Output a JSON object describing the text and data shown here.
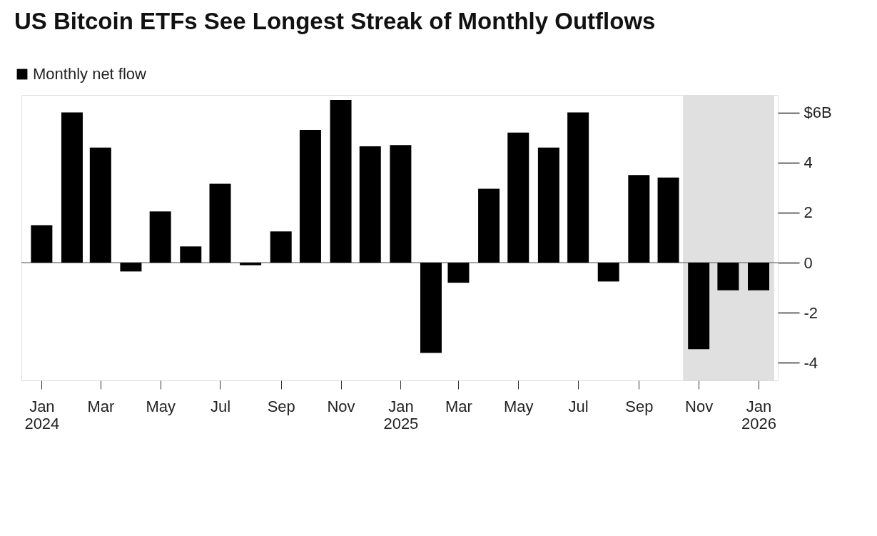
{
  "chart_data": {
    "type": "bar",
    "title": "US Bitcoin ETFs See Longest Streak of Monthly Outflows",
    "x": [
      "2024-01",
      "2024-02",
      "2024-03",
      "2024-04",
      "2024-05",
      "2024-06",
      "2024-07",
      "2024-08",
      "2024-09",
      "2024-10",
      "2024-11",
      "2024-12",
      "2025-01",
      "2025-02",
      "2025-03",
      "2025-04",
      "2025-05",
      "2025-06",
      "2025-07",
      "2025-08",
      "2025-09",
      "2025-10",
      "2025-11",
      "2025-12",
      "2026-01"
    ],
    "series": [
      {
        "name": "Monthly net flow",
        "color": "#000000",
        "values": [
          1.5,
          6.0,
          4.6,
          -0.35,
          2.05,
          0.65,
          3.15,
          -0.1,
          1.25,
          5.3,
          6.5,
          4.65,
          4.7,
          -3.6,
          -0.8,
          2.95,
          5.2,
          4.6,
          6.0,
          -0.75,
          3.5,
          3.4,
          -3.45,
          -1.1,
          -1.1
        ]
      }
    ],
    "xlim": [
      "2023-12-15",
      "2026-01-17"
    ],
    "xticks": [
      {
        "value": "2024-01",
        "label": "Jan 2024"
      },
      {
        "value": "2024-03",
        "label": "Mar"
      },
      {
        "value": "2024-05",
        "label": "May"
      },
      {
        "value": "2024-07",
        "label": "Jul"
      },
      {
        "value": "2024-09",
        "label": "Sep"
      },
      {
        "value": "2024-11",
        "label": "Nov"
      },
      {
        "value": "2025-01",
        "label": "Jan 2025"
      },
      {
        "value": "2025-03",
        "label": "Mar"
      },
      {
        "value": "2025-05",
        "label": "May"
      },
      {
        "value": "2025-07",
        "label": "Jul"
      },
      {
        "value": "2025-09",
        "label": "Sep"
      },
      {
        "value": "2025-11",
        "label": "Nov"
      },
      {
        "value": "2026-01",
        "label": "Jan 2026"
      }
    ],
    "ylim": [
      -4.7,
      6.7
    ],
    "yticks": [
      {
        "value": 6,
        "label": "$6B"
      },
      4,
      2,
      0,
      -2,
      -4
    ],
    "ref_lines": [
      {
        "axis": "y",
        "value": 0,
        "color": "#888888"
      }
    ],
    "bands": [
      {
        "axis": "x",
        "from": "2025-10-16",
        "to": "2026-01-17",
        "color": "#e0e0e0"
      }
    ],
    "legend": "top left",
    "grid": false
  }
}
